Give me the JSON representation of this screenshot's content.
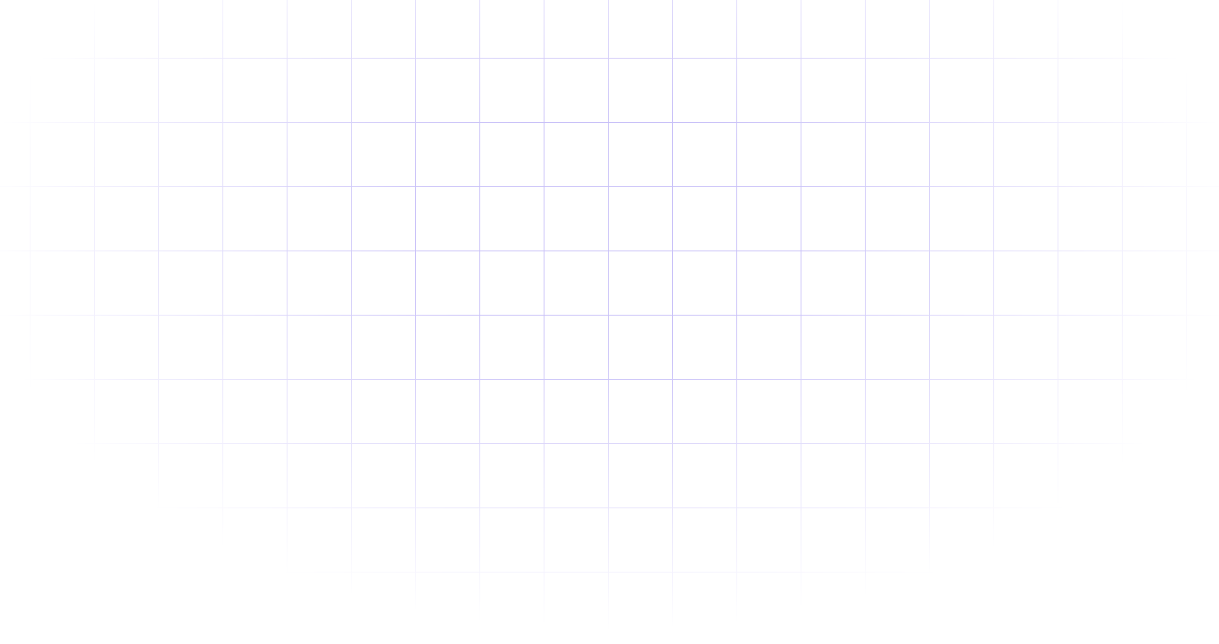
{
  "background": {
    "grid_line_color": "#c8c0f8",
    "background_color": "#ffffff"
  }
}
